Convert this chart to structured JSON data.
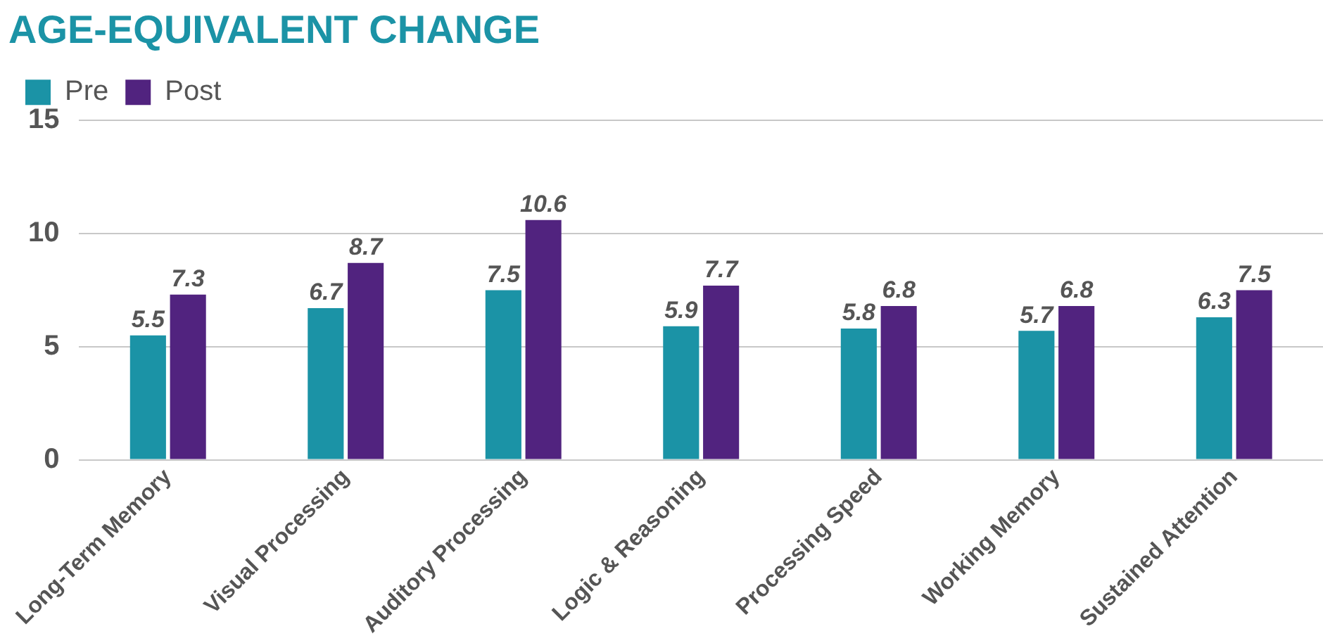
{
  "chart_data": {
    "type": "bar",
    "title": "AGE-EQUIVALENT CHANGE",
    "categories": [
      "Long-Term Memory",
      "Visual Processing",
      "Auditory Processing",
      "Logic & Reasoning",
      "Processing Speed",
      "Working Memory",
      "Sustained Attention"
    ],
    "series": [
      {
        "name": "Pre",
        "color": "#1b93a6",
        "values": [
          5.5,
          6.7,
          7.5,
          5.9,
          5.8,
          5.7,
          6.3
        ]
      },
      {
        "name": "Post",
        "color": "#51237f",
        "values": [
          7.3,
          8.7,
          10.6,
          7.7,
          6.8,
          6.8,
          7.5
        ]
      }
    ],
    "ylim": [
      0,
      15
    ],
    "yticks": [
      0,
      5,
      10,
      15
    ],
    "grid": "y",
    "legend": "top left",
    "data_labels": true
  }
}
